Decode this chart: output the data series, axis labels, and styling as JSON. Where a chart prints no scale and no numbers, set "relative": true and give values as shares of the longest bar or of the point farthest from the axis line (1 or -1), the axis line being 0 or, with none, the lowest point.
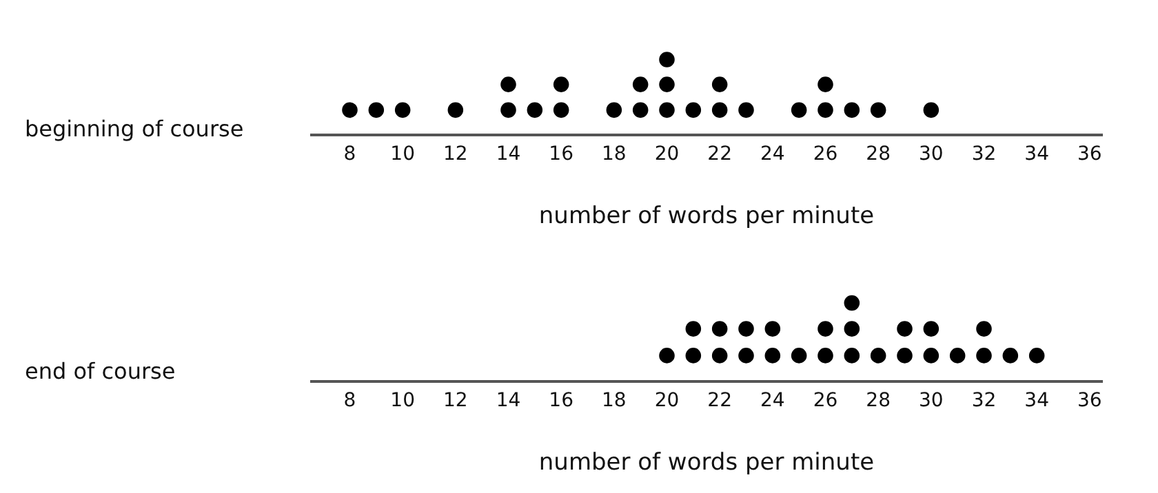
{
  "chart_data": [
    {
      "type": "scatter",
      "ylabel": "beginning of course",
      "xlabel": "number of words per minute",
      "xlim": [
        6.5,
        36.5
      ],
      "xticks": [
        8,
        10,
        12,
        14,
        16,
        18,
        20,
        22,
        24,
        26,
        28,
        30,
        32,
        34,
        36
      ],
      "relative": true,
      "tick_labels": "x",
      "marker": "circle",
      "series": [
        {
          "color": "#000000",
          "x": [
            8,
            9,
            10,
            12,
            14,
            14,
            15,
            16,
            16,
            18,
            19,
            19,
            20,
            20,
            20,
            21,
            22,
            22,
            23,
            25,
            26,
            26,
            27,
            28,
            30
          ],
          "values": [
            0.33,
            0.33,
            0.33,
            0.33,
            0.33,
            0.67,
            0.33,
            0.33,
            0.67,
            0.33,
            0.33,
            0.67,
            0.33,
            0.67,
            1,
            0.33,
            0.33,
            0.67,
            0.33,
            0.33,
            0.33,
            0.67,
            0.33,
            0.33,
            0.33
          ]
        }
      ]
    },
    {
      "type": "scatter",
      "ylabel": "end of course",
      "xlabel": "number of words per minute",
      "xlim": [
        6.5,
        36.5
      ],
      "xticks": [
        8,
        10,
        12,
        14,
        16,
        18,
        20,
        22,
        24,
        26,
        28,
        30,
        32,
        34,
        36
      ],
      "relative": true,
      "tick_labels": "x",
      "marker": "circle",
      "series": [
        {
          "color": "#000000",
          "x": [
            20,
            21,
            21,
            22,
            22,
            23,
            23,
            24,
            24,
            25,
            26,
            26,
            27,
            27,
            27,
            28,
            29,
            29,
            30,
            30,
            31,
            32,
            32,
            33,
            34
          ],
          "values": [
            0.33,
            0.33,
            0.67,
            0.33,
            0.67,
            0.33,
            0.67,
            0.33,
            0.67,
            0.33,
            0.33,
            0.67,
            0.33,
            0.67,
            1,
            0.33,
            0.33,
            0.67,
            0.33,
            0.67,
            0.33,
            0.33,
            0.67,
            0.33,
            0.33
          ]
        }
      ]
    }
  ]
}
